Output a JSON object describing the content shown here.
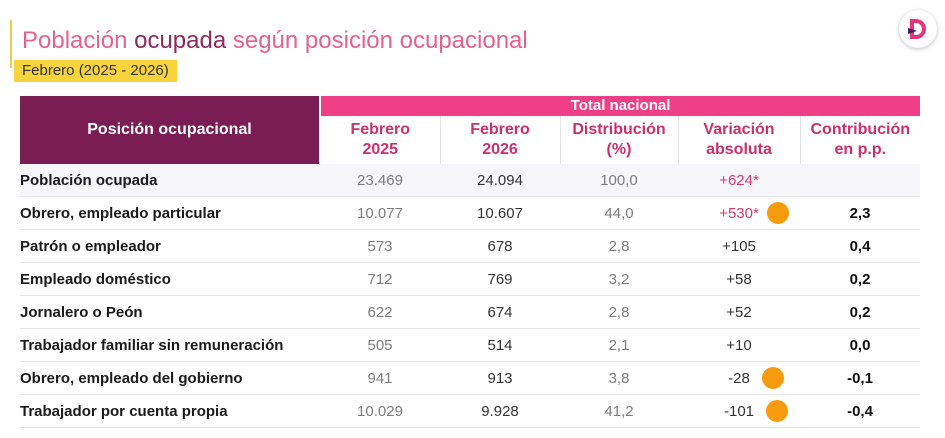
{
  "title": {
    "part1": "Población",
    "part2": "ocupada",
    "part3": "según posición ocupacional"
  },
  "subtitle": "Febrero (2025 - 2026)",
  "logo": {
    "letter": "D",
    "colors": [
      "#e8347d",
      "#4a1c5a"
    ]
  },
  "colors": {
    "header_dark": "#7a1d55",
    "header_pink": "#ef3f86",
    "col_header_text": "#cc2f6f",
    "highlight_dot": "#f79b0e",
    "subtitle_bg": "#f7d43b"
  },
  "table": {
    "position_header": "Posición ocupacional",
    "group_header": "Total nacional",
    "columns": [
      {
        "line1": "Febrero",
        "line2": "2025"
      },
      {
        "line1": "Febrero",
        "line2": "2026"
      },
      {
        "line1": "Distribución",
        "line2": "(%)"
      },
      {
        "line1": "Variación",
        "line2": "absoluta"
      },
      {
        "line1": "Contribución",
        "line2": "en p.p."
      }
    ],
    "rows": [
      {
        "label": "Población ocupada",
        "feb2025": "23.469",
        "feb2026": "24.094",
        "dist": "100,0",
        "var": "+624*",
        "contrib": "",
        "var_highlight": true,
        "dot": false
      },
      {
        "label": "Obrero, empleado particular",
        "feb2025": "10.077",
        "feb2026": "10.607",
        "dist": "44,0",
        "var": "+530*",
        "contrib": "2,3",
        "var_highlight": true,
        "dot": true
      },
      {
        "label": "Patrón o empleador",
        "feb2025": "573",
        "feb2026": "678",
        "dist": "2,8",
        "var": "+105",
        "contrib": "0,4",
        "var_highlight": false,
        "dot": false
      },
      {
        "label": "Empleado doméstico",
        "feb2025": "712",
        "feb2026": "769",
        "dist": "3,2",
        "var": "+58",
        "contrib": "0,2",
        "var_highlight": false,
        "dot": false
      },
      {
        "label": "Jornalero o Peón",
        "feb2025": "622",
        "feb2026": "674",
        "dist": "2,8",
        "var": "+52",
        "contrib": "0,2",
        "var_highlight": false,
        "dot": false
      },
      {
        "label": "Trabajador familiar sin remuneración",
        "feb2025": "505",
        "feb2026": "514",
        "dist": "2,1",
        "var": "+10",
        "contrib": "0,0",
        "var_highlight": false,
        "dot": false
      },
      {
        "label": "Obrero, empleado del gobierno",
        "feb2025": "941",
        "feb2026": "913",
        "dist": "3,8",
        "var": "-28",
        "contrib": "-0,1",
        "var_highlight": false,
        "dot": true
      },
      {
        "label": "Trabajador por cuenta propia",
        "feb2025": "10.029",
        "feb2026": "9.928",
        "dist": "41,2",
        "var": "-101",
        "contrib": "-0,4",
        "var_highlight": false,
        "dot": true
      }
    ]
  }
}
